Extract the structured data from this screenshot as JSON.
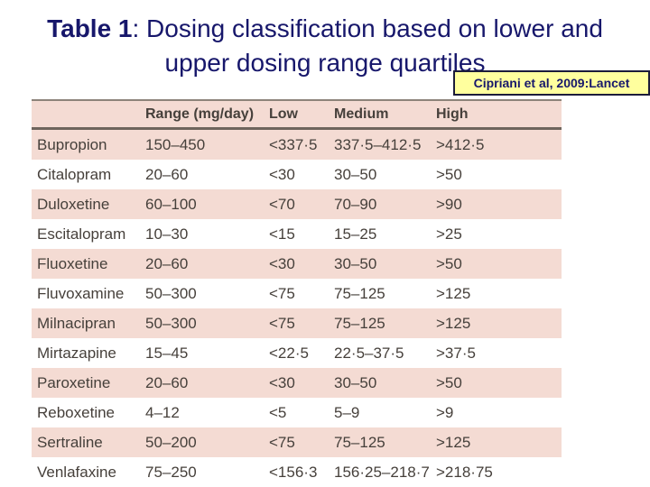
{
  "title": {
    "bold": "Table 1",
    "line1_rest": ": Dosing classification based on lower and",
    "line2": "upper dosing range quartiles"
  },
  "citation": {
    "label": "Cipriani et al, 2009:Lancet"
  },
  "table": {
    "columns": [
      "",
      "Range (mg/day)",
      "Low",
      "Medium",
      "High"
    ],
    "rows": [
      {
        "drug": "Bupropion",
        "range": "150–450",
        "low": "<337·5",
        "medium": "337·5–412·5",
        "high": ">412·5"
      },
      {
        "drug": "Citalopram",
        "range": "20–60",
        "low": "<30",
        "medium": "30–50",
        "high": ">50"
      },
      {
        "drug": "Duloxetine",
        "range": "60–100",
        "low": "<70",
        "medium": "70–90",
        "high": ">90"
      },
      {
        "drug": "Escitalopram",
        "range": "10–30",
        "low": "<15",
        "medium": "15–25",
        "high": ">25"
      },
      {
        "drug": "Fluoxetine",
        "range": "20–60",
        "low": "<30",
        "medium": "30–50",
        "high": ">50"
      },
      {
        "drug": "Fluvoxamine",
        "range": "50–300",
        "low": "<75",
        "medium": "75–125",
        "high": ">125"
      },
      {
        "drug": "Milnacipran",
        "range": "50–300",
        "low": "<75",
        "medium": "75–125",
        "high": ">125"
      },
      {
        "drug": "Mirtazapine",
        "range": "15–45",
        "low": "<22·5",
        "medium": "22·5–37·5",
        "high": ">37·5"
      },
      {
        "drug": "Paroxetine",
        "range": "20–60",
        "low": "<30",
        "medium": "30–50",
        "high": ">50"
      },
      {
        "drug": "Reboxetine",
        "range": "4–12",
        "low": "<5",
        "medium": "5–9",
        "high": ">9"
      },
      {
        "drug": "Sertraline",
        "range": "50–200",
        "low": "<75",
        "medium": "75–125",
        "high": ">125"
      },
      {
        "drug": "Venlafaxine",
        "range": "75–250",
        "low": "<156·3",
        "medium": "156·25–218·7",
        "high": ">218·75"
      }
    ]
  },
  "colors": {
    "title_navy": "#17176b",
    "label_bg": "#ffff9e",
    "label_border": "#1c1c3a",
    "stripe_pink": "#f4dbd3",
    "table_text": "#46403b"
  }
}
